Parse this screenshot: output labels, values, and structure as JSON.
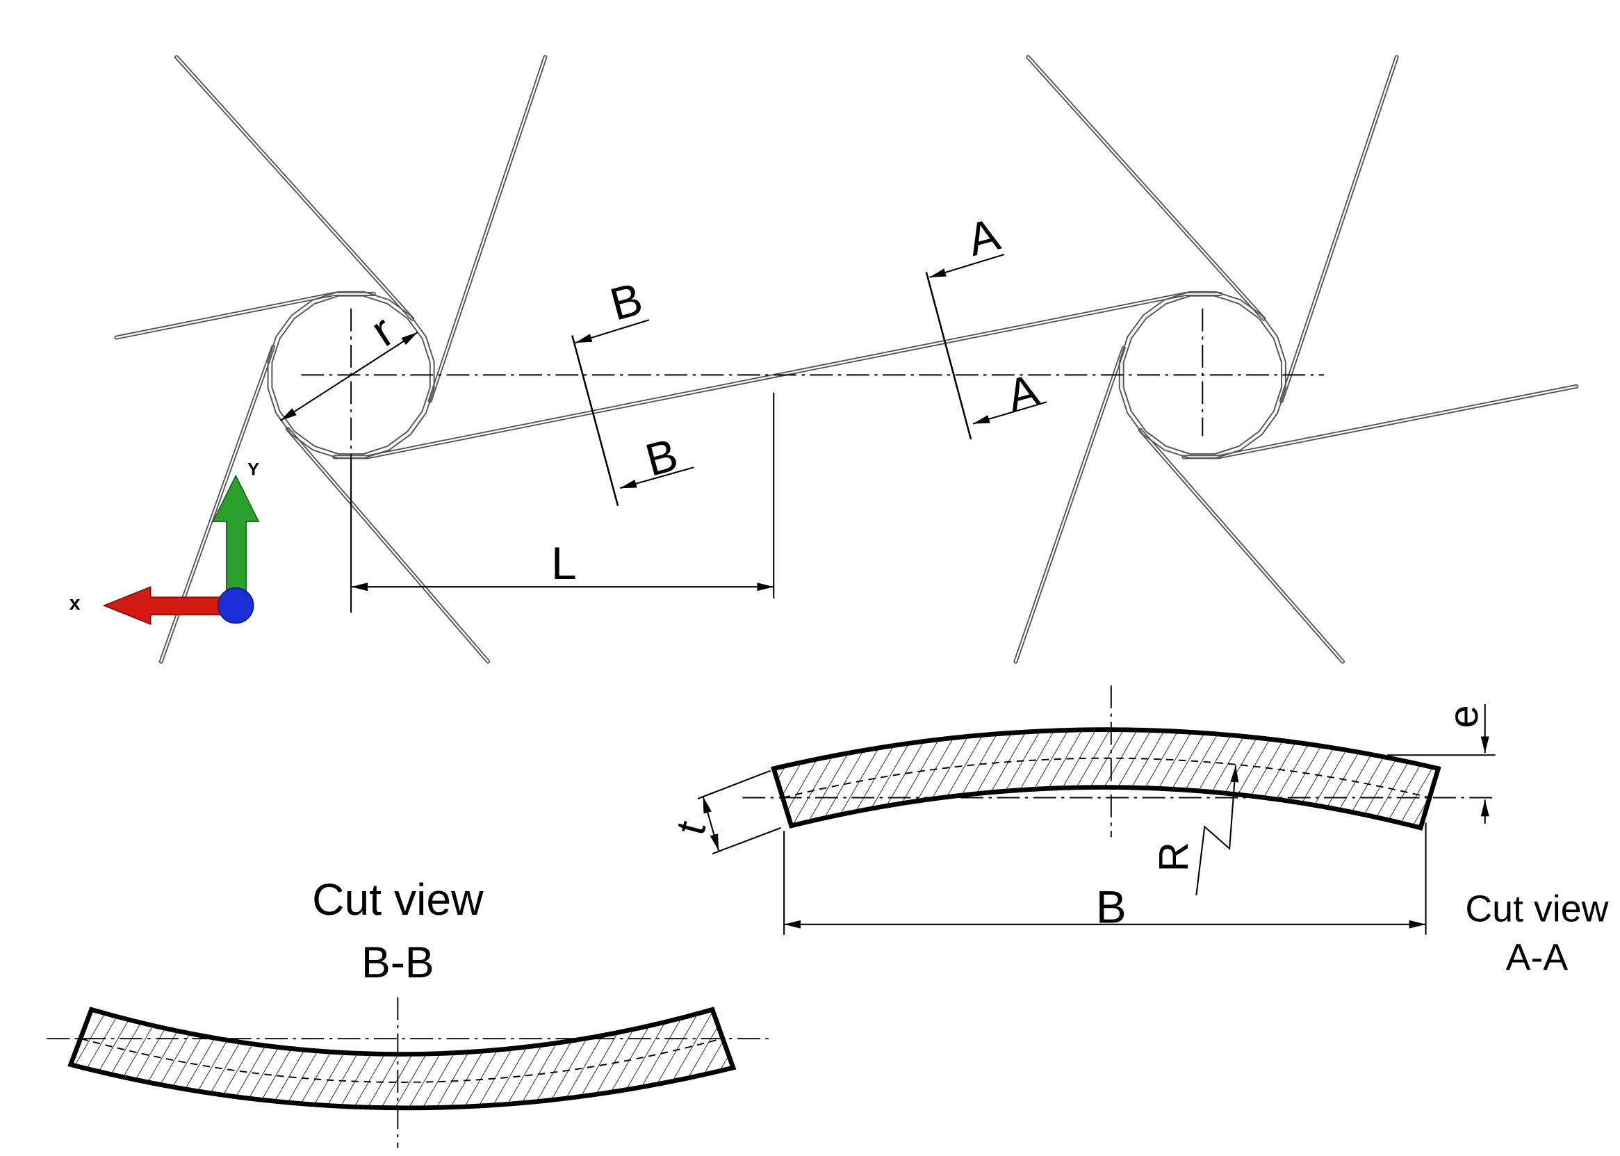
{
  "overview": {
    "roller_radius_label": "r",
    "span_label": "L",
    "section_b_top_label": "B",
    "section_b_bottom_label": "B",
    "section_a_top_label": "A",
    "section_a_bottom_label": "A",
    "axis_x_label": "x",
    "axis_y_label": "Y"
  },
  "cut_view_aa": {
    "title": "Cut view",
    "section_label": "A-A",
    "offset_label": "e",
    "thickness_label": "t",
    "radius_label": "R",
    "width_label": "B"
  },
  "cut_view_bb": {
    "title": "Cut view",
    "section_label": "B-B"
  },
  "colors": {
    "x_axis_arrow": "#d11a12",
    "y_axis_arrow": "#2ca02c",
    "origin_marker": "#1c2fd6",
    "fiber": "#555555"
  }
}
